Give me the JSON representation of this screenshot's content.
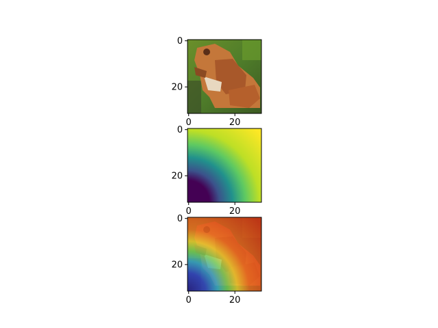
{
  "chart_data": [
    {
      "type": "heatmap",
      "content": "frog photo",
      "xticks": [
        "0",
        "20"
      ],
      "yticks": [
        "0",
        "20"
      ],
      "x_range": [
        0,
        31
      ],
      "y_range": [
        0,
        31
      ]
    },
    {
      "type": "heatmap",
      "content": "attention heatmap, high values top-right, low values bottom-left",
      "colormap": "viridis",
      "xticks": [
        "0",
        "20"
      ],
      "yticks": [
        "0",
        "20"
      ],
      "x_range": [
        0,
        31
      ],
      "y_range": [
        0,
        31
      ]
    },
    {
      "type": "heatmap",
      "content": "frog photo with jet colormap heatmap overlay",
      "colormap": "jet",
      "xticks": [
        "0",
        "20"
      ],
      "yticks": [
        "0",
        "20"
      ],
      "x_range": [
        0,
        31
      ],
      "y_range": [
        0,
        31
      ]
    }
  ],
  "colors": {
    "viridis_low": "#440154",
    "viridis_mid": "#21918c",
    "viridis_high": "#fde725",
    "frog_body": "#c4773a",
    "grass": "#5a8a2e",
    "overlay_red": "#d93a1a"
  }
}
